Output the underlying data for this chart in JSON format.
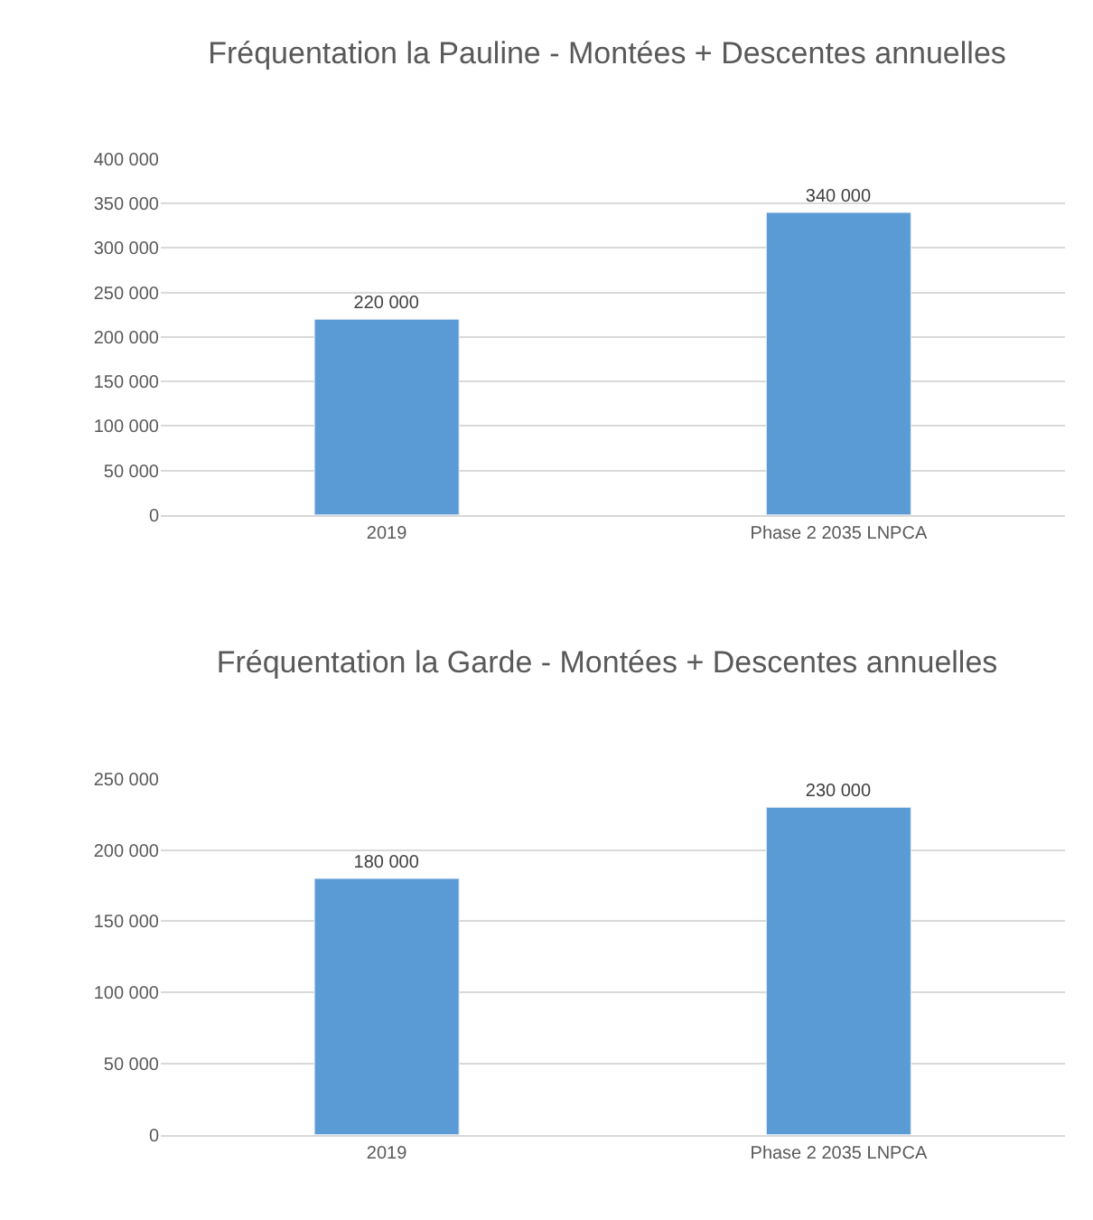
{
  "chart_data": [
    {
      "type": "bar",
      "title": "Fréquentation la Pauline - Montées + Descentes annuelles",
      "categories": [
        "2019",
        "Phase 2 2035 LNPCA"
      ],
      "values": [
        220000,
        340000
      ],
      "color": "#5b9bd5",
      "value_labels": [
        "220 000",
        "340 000"
      ],
      "ylim": [
        0,
        400000
      ],
      "yticks": [
        {
          "value": 0,
          "label": "0"
        },
        {
          "value": 50000,
          "label": "50 000"
        },
        {
          "value": 100000,
          "label": "100 000"
        },
        {
          "value": 150000,
          "label": "150 000"
        },
        {
          "value": 200000,
          "label": "200 000"
        },
        {
          "value": 250000,
          "label": "250 000"
        },
        {
          "value": 300000,
          "label": "300 000"
        },
        {
          "value": 350000,
          "label": "350 000"
        },
        {
          "value": 400000,
          "label": "400 000"
        }
      ],
      "grid": "y"
    },
    {
      "type": "bar",
      "title": "Fréquentation la Garde - Montées + Descentes annuelles",
      "categories": [
        "2019",
        "Phase 2 2035 LNPCA"
      ],
      "values": [
        180000,
        230000
      ],
      "color": "#5b9bd5",
      "value_labels": [
        "180 000",
        "230 000"
      ],
      "ylim": [
        0,
        250000
      ],
      "yticks": [
        {
          "value": 0,
          "label": "0"
        },
        {
          "value": 50000,
          "label": "50 000"
        },
        {
          "value": 100000,
          "label": "100 000"
        },
        {
          "value": 150000,
          "label": "150 000"
        },
        {
          "value": 200000,
          "label": "200 000"
        },
        {
          "value": 250000,
          "label": "250 000"
        }
      ],
      "grid": "y"
    }
  ]
}
